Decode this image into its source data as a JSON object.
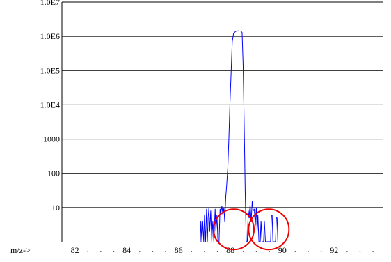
{
  "chart_data": {
    "type": "line",
    "scale": "log",
    "ylim": [
      1,
      10000000
    ],
    "xlim": [
      81.5,
      93.9
    ],
    "grid": true,
    "y_tick_labels": [
      {
        "value": 10000000,
        "label": "1.0E7"
      },
      {
        "value": 1000000,
        "label": "1.0E6"
      },
      {
        "value": 100000,
        "label": "1.0E5"
      },
      {
        "value": 10000,
        "label": "1.0E4"
      },
      {
        "value": 1000,
        "label": "1000"
      },
      {
        "value": 100,
        "label": "100"
      },
      {
        "value": 10,
        "label": "10"
      }
    ],
    "x_axis_label": "m/z->",
    "x_tick_labels": [
      {
        "value": 82,
        "label": "82"
      },
      {
        "value": 84,
        "label": "84"
      },
      {
        "value": 86,
        "label": "86"
      },
      {
        "value": 88,
        "label": "88"
      },
      {
        "value": 90,
        "label": "90"
      },
      {
        "value": 92,
        "label": "92"
      }
    ],
    "x_minor_ticks": [
      82.5,
      83,
      83.5,
      84.5,
      85,
      85.5,
      86.5,
      87,
      87.5,
      88.5,
      89,
      89.5,
      90.5,
      91,
      91.5,
      92.5,
      93,
      93.5
    ],
    "series": [
      {
        "color": "#0000ff",
        "points": [
          [
            86.84,
            1
          ],
          [
            86.86,
            4
          ],
          [
            86.9,
            1
          ],
          [
            86.93,
            4
          ],
          [
            86.97,
            1
          ],
          [
            87.0,
            6
          ],
          [
            87.04,
            1
          ],
          [
            87.08,
            9
          ],
          [
            87.11,
            1
          ],
          [
            87.14,
            5
          ],
          [
            87.17,
            10
          ],
          [
            87.2,
            2
          ],
          [
            87.24,
            8
          ],
          [
            87.28,
            1
          ],
          [
            87.32,
            4
          ],
          [
            87.36,
            1
          ],
          [
            87.41,
            9
          ],
          [
            87.44,
            2
          ],
          [
            87.48,
            6
          ],
          [
            87.52,
            1
          ],
          [
            87.56,
            1
          ],
          [
            87.6,
            9
          ],
          [
            87.63,
            7
          ],
          [
            87.67,
            11
          ],
          [
            87.71,
            6
          ],
          [
            87.75,
            10
          ],
          [
            87.78,
            4
          ],
          [
            87.82,
            20
          ],
          [
            87.86,
            50
          ],
          [
            87.9,
            150
          ],
          [
            87.94,
            1000
          ],
          [
            87.98,
            10000
          ],
          [
            88.03,
            100000
          ],
          [
            88.07,
            700000
          ],
          [
            88.12,
            1200000
          ],
          [
            88.2,
            1400000
          ],
          [
            88.3,
            1450000
          ],
          [
            88.4,
            1420000
          ],
          [
            88.45,
            1300000
          ],
          [
            88.49,
            150000
          ],
          [
            88.53,
            3000
          ],
          [
            88.57,
            30
          ],
          [
            88.61,
            1
          ],
          [
            88.65,
            1
          ],
          [
            88.69,
            8
          ],
          [
            88.72,
            5
          ],
          [
            88.76,
            12
          ],
          [
            88.8,
            4
          ],
          [
            88.84,
            15
          ],
          [
            88.88,
            8
          ],
          [
            88.92,
            9
          ],
          [
            88.96,
            3
          ],
          [
            89.0,
            10
          ],
          [
            89.03,
            2
          ],
          [
            89.06,
            6
          ],
          [
            89.1,
            1
          ],
          [
            89.15,
            1
          ],
          [
            89.18,
            4
          ],
          [
            89.22,
            1
          ],
          [
            89.28,
            1
          ],
          [
            89.31,
            4
          ],
          [
            89.35,
            1
          ],
          [
            89.55,
            1
          ],
          [
            89.58,
            6
          ],
          [
            89.61,
            6
          ],
          [
            89.64,
            1
          ],
          [
            89.74,
            1
          ],
          [
            89.77,
            5
          ],
          [
            89.8,
            5
          ],
          [
            89.83,
            1
          ]
        ]
      }
    ]
  },
  "annotations": {
    "circle_color": "#ee0000",
    "circles": [
      {
        "center_x": 88.13,
        "center_y": 2.3
      },
      {
        "center_x": 89.48,
        "center_y": 2.3
      }
    ]
  }
}
